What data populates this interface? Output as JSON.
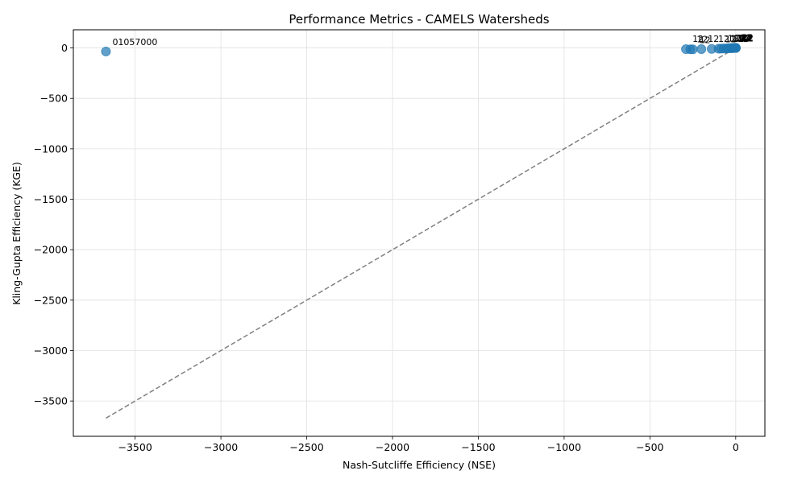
{
  "chart_data": {
    "type": "scatter",
    "title": "Performance Metrics - CAMELS Watersheds",
    "xlabel": "Nash-Sutcliffe Efficiency (NSE)",
    "ylabel": "Kling-Gupta Efficiency (KGE)",
    "xlim": [
      -3860,
      170
    ],
    "ylim": [
      -3850,
      180
    ],
    "xticks": [
      -3500,
      -3000,
      -2500,
      -2000,
      -1500,
      -1000,
      -500,
      0
    ],
    "yticks": [
      0,
      -500,
      -1000,
      -1500,
      -2000,
      -2500,
      -3000,
      -3500
    ],
    "grid": true,
    "marker_color": "#1f77b4",
    "reference_line": {
      "style": "dashed",
      "color": "#808080",
      "x": [
        -3670,
        0
      ],
      "y": [
        -3670,
        0
      ]
    },
    "points": [
      {
        "x": -3670,
        "y": -35,
        "label": "01057000"
      },
      {
        "x": -290,
        "y": -12,
        "label": "12"
      },
      {
        "x": -265,
        "y": -14,
        "label": "12"
      },
      {
        "x": -250,
        "y": -14,
        "label": "12"
      },
      {
        "x": -200,
        "y": -12,
        "label": "12"
      },
      {
        "x": -140,
        "y": -10,
        "label": "12"
      },
      {
        "x": -100,
        "y": -8,
        "label": "12"
      },
      {
        "x": -85,
        "y": -7,
        "label": "12"
      },
      {
        "x": -70,
        "y": -6,
        "label": "12"
      },
      {
        "x": -55,
        "y": -5,
        "label": "12"
      },
      {
        "x": -45,
        "y": -4,
        "label": "12"
      },
      {
        "x": -35,
        "y": -3,
        "label": "12"
      },
      {
        "x": -28,
        "y": -3,
        "label": "12"
      },
      {
        "x": -22,
        "y": -2,
        "label": "12"
      },
      {
        "x": -16,
        "y": -2,
        "label": "12"
      },
      {
        "x": -12,
        "y": -1,
        "label": "12"
      },
      {
        "x": -8,
        "y": -1,
        "label": "12"
      },
      {
        "x": -5,
        "y": 0,
        "label": "12"
      },
      {
        "x": -3,
        "y": 0,
        "label": "12"
      },
      {
        "x": -1,
        "y": 0,
        "label": "12"
      },
      {
        "x": 0,
        "y": 0,
        "label": "12"
      },
      {
        "x": 0.3,
        "y": 0.2,
        "label": "12"
      },
      {
        "x": 0.6,
        "y": 0.5,
        "label": "12"
      }
    ]
  }
}
